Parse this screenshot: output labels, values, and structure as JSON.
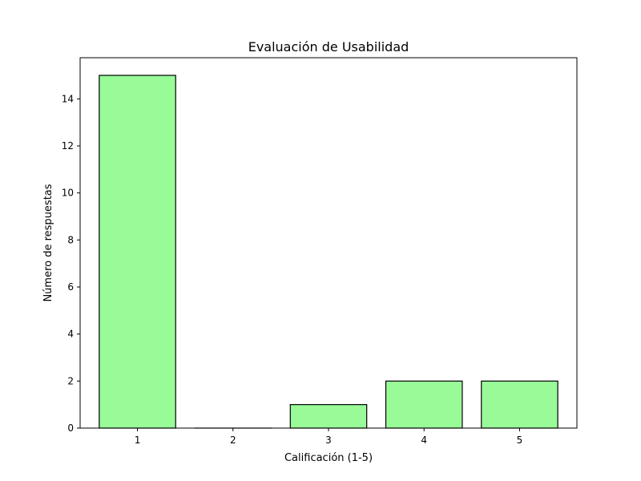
{
  "chart_data": {
    "type": "bar",
    "title": "Evaluación de Usabilidad",
    "xlabel": "Calificación (1-5)",
    "ylabel": "Número de respuestas",
    "categories": [
      "1",
      "2",
      "3",
      "4",
      "5"
    ],
    "values": [
      15,
      0,
      1,
      2,
      2
    ],
    "ylim": [
      0,
      15.75
    ],
    "yticks": [
      0,
      2,
      4,
      6,
      8,
      10,
      12,
      14
    ],
    "grid": false,
    "colors": {
      "bar_fill": "#98fb98",
      "bar_edge": "#000000"
    }
  }
}
